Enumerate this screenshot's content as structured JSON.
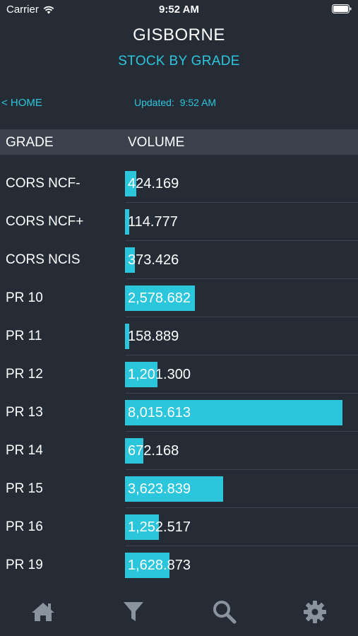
{
  "status_bar": {
    "carrier": "Carrier",
    "time": "9:52 AM",
    "icons": [
      "wifi-icon",
      "battery-icon"
    ]
  },
  "header": {
    "title": "GISBORNE",
    "subtitle": "STOCK BY GRADE"
  },
  "nav": {
    "back_label": "< HOME",
    "updated_label": "Updated:",
    "updated_time": "9:52 AM"
  },
  "table": {
    "columns": [
      "GRADE",
      "VOLUME"
    ],
    "max_volume": 8015.613,
    "rows": [
      {
        "grade": "CORS NCF-",
        "value": "424.169",
        "volume": 424.169
      },
      {
        "grade": "CORS NCF+",
        "value": "114.777",
        "volume": 114.777
      },
      {
        "grade": "CORS NCIS",
        "value": "373.426",
        "volume": 373.426
      },
      {
        "grade": "PR 10",
        "value": "2,578.682",
        "volume": 2578.682
      },
      {
        "grade": "PR 11",
        "value": "158.889",
        "volume": 158.889
      },
      {
        "grade": "PR 12",
        "value": "1,201.300",
        "volume": 1201.3
      },
      {
        "grade": "PR 13",
        "value": "8,015.613",
        "volume": 8015.613
      },
      {
        "grade": "PR 14",
        "value": "672.168",
        "volume": 672.168
      },
      {
        "grade": "PR 15",
        "value": "3,623.839",
        "volume": 3623.839
      },
      {
        "grade": "PR 16",
        "value": "1,252.517",
        "volume": 1252.517
      },
      {
        "grade": "PR 19",
        "value": "1,628.873",
        "volume": 1628.873
      }
    ]
  },
  "tab_bar": {
    "icons": [
      "home-icon",
      "filter-icon",
      "search-icon",
      "gear-icon"
    ]
  },
  "colors": {
    "background": "#262c36",
    "header_band": "#3a414d",
    "accent": "#2cc6dc",
    "icon": "#8b939e"
  }
}
